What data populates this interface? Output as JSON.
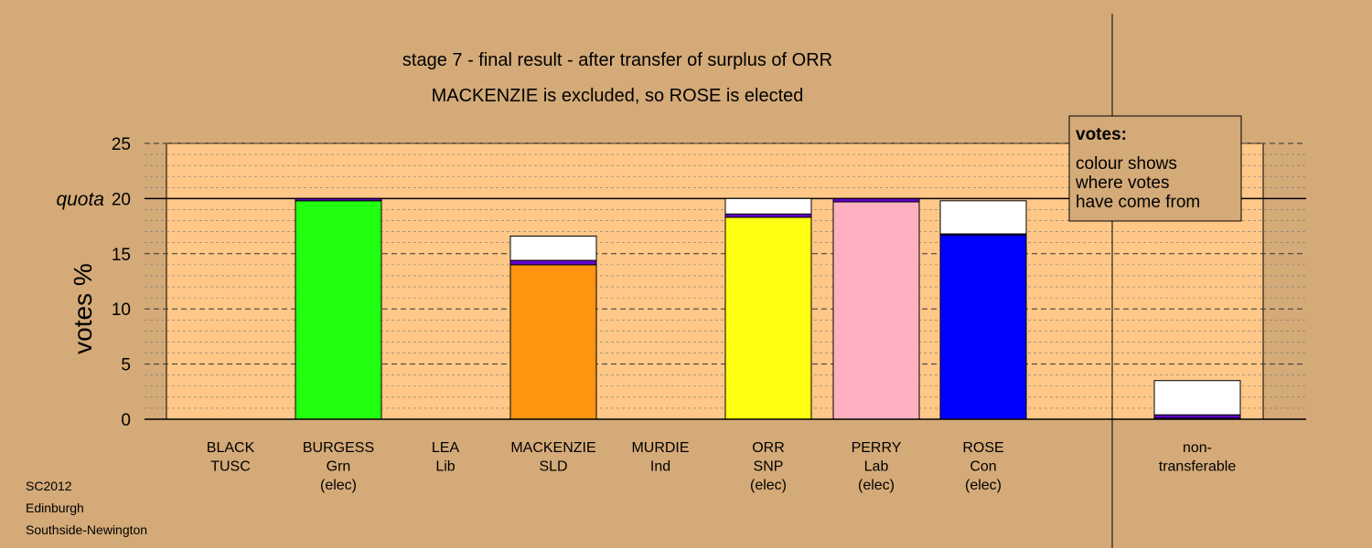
{
  "chart_data": {
    "type": "bar",
    "stacked": true,
    "title": "stage 7 - final result - after transfer of surplus of ORR",
    "subtitle": "MACKENZIE is excluded, so ROSE is elected",
    "ylabel": "votes %",
    "ylim": [
      0,
      25
    ],
    "yticks": [
      0,
      5,
      10,
      15,
      20,
      25
    ],
    "quota": {
      "label": "quota",
      "value": 20
    },
    "grid": true,
    "legend": {
      "position": "top-right",
      "heading": "votes:",
      "lines": [
        "colour shows",
        "where votes",
        "have come from"
      ]
    },
    "categories": [
      {
        "name": "BLACK",
        "party": "TUSC",
        "status": ""
      },
      {
        "name": "BURGESS",
        "party": "Grn",
        "status": "(elec)"
      },
      {
        "name": "LEA",
        "party": "Lib",
        "status": ""
      },
      {
        "name": "MACKENZIE",
        "party": "SLD",
        "status": ""
      },
      {
        "name": "MURDIE",
        "party": "Ind",
        "status": ""
      },
      {
        "name": "ORR",
        "party": "SNP",
        "status": "(elec)"
      },
      {
        "name": "PERRY",
        "party": "Lab",
        "status": "(elec)"
      },
      {
        "name": "ROSE",
        "party": "Con",
        "status": "(elec)"
      },
      {
        "name": "non-",
        "party": "transferable",
        "status": ""
      }
    ],
    "stacks": [
      [],
      [
        {
          "value": 19.8,
          "color": "#22FF11"
        },
        {
          "value": 0.2,
          "color": "#6600CC"
        }
      ],
      [],
      [
        {
          "value": 14.0,
          "color": "#FF9411"
        },
        {
          "value": 0.4,
          "color": "#6600CC"
        },
        {
          "value": 2.2,
          "color": "#FFFFFF"
        }
      ],
      [],
      [
        {
          "value": 18.3,
          "color": "#FFFF11"
        },
        {
          "value": 0.3,
          "color": "#6600CC"
        },
        {
          "value": 1.4,
          "color": "#FFFFFF"
        }
      ],
      [
        {
          "value": 19.7,
          "color": "#FFB0C0"
        },
        {
          "value": 0.3,
          "color": "#6600CC"
        }
      ],
      [
        {
          "value": 16.7,
          "color": "#0000FF"
        },
        {
          "value": 0.1,
          "color": "#6600CC"
        },
        {
          "value": 3.0,
          "color": "#FFFFFF"
        }
      ],
      [
        {
          "value": 0.1,
          "color": "#0000FF"
        },
        {
          "value": 0.3,
          "color": "#6600CC"
        },
        {
          "value": 3.1,
          "color": "#FFFFFF"
        }
      ]
    ]
  },
  "source": {
    "lines": [
      "SC2012",
      "Edinburgh",
      "Southside-Newington"
    ]
  },
  "colors": {
    "background": "#D4AA78",
    "plot_area": "#FFC888"
  }
}
